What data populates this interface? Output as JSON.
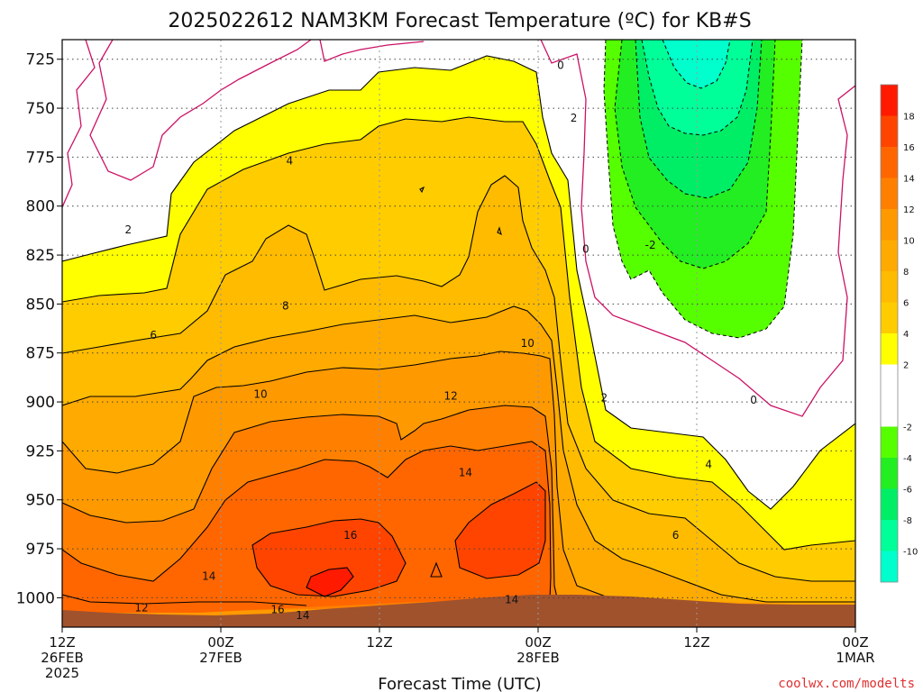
{
  "chart_data": {
    "type": "heatmap",
    "title": "2025022612 NAM3KM Forecast Temperature (ºC) for KB#S",
    "xlabel": "Forecast Time (UTC)",
    "ylabel": "",
    "y_ticks": [
      725,
      750,
      775,
      800,
      825,
      850,
      875,
      900,
      925,
      950,
      975,
      1000
    ],
    "ylim": [
      1015,
      715
    ],
    "x_ticks": [
      {
        "line1": "12Z",
        "line2": "26FEB",
        "line3": "2025"
      },
      {
        "line1": "00Z",
        "line2": "27FEB",
        "line3": ""
      },
      {
        "line1": "12Z",
        "line2": "",
        "line3": ""
      },
      {
        "line1": "00Z",
        "line2": "28FEB",
        "line3": ""
      },
      {
        "line1": "12Z",
        "line2": "",
        "line3": ""
      },
      {
        "line1": "00Z",
        "line2": "1MAR",
        "line3": ""
      }
    ],
    "x_hours": [
      0,
      12,
      24,
      36,
      48,
      60
    ],
    "colorbar": {
      "ticks": [
        18,
        16,
        14,
        12,
        10,
        8,
        6,
        4,
        2,
        -2,
        -4,
        -6,
        -8,
        -10
      ],
      "bins": [
        {
          "lo": 18,
          "hi": 20,
          "color": "#ff1a00"
        },
        {
          "lo": 16,
          "hi": 18,
          "color": "#ff4400"
        },
        {
          "lo": 14,
          "hi": 16,
          "color": "#ff6600"
        },
        {
          "lo": 12,
          "hi": 14,
          "color": "#ff8000"
        },
        {
          "lo": 10,
          "hi": 12,
          "color": "#ff9900"
        },
        {
          "lo": 8,
          "hi": 10,
          "color": "#ffaa00"
        },
        {
          "lo": 6,
          "hi": 8,
          "color": "#ffbb00"
        },
        {
          "lo": 4,
          "hi": 6,
          "color": "#ffcc00"
        },
        {
          "lo": 2,
          "hi": 4,
          "color": "#ffff00"
        },
        {
          "lo": -2,
          "hi": 2,
          "color": "#ffffff"
        },
        {
          "lo": -4,
          "hi": -2,
          "color": "#55ff00"
        },
        {
          "lo": -6,
          "hi": -4,
          "color": "#22ee22"
        },
        {
          "lo": -8,
          "hi": -6,
          "color": "#00ee66"
        },
        {
          "lo": -10,
          "hi": -8,
          "color": "#00ff99"
        },
        {
          "lo": -12,
          "hi": -10,
          "color": "#00ffcc"
        }
      ]
    },
    "contour_labels": [
      {
        "hour": 5.0,
        "p": 812,
        "text": "2"
      },
      {
        "hour": 17.2,
        "p": 777,
        "text": "4"
      },
      {
        "hour": 6.9,
        "p": 866,
        "text": "6"
      },
      {
        "hour": 16.9,
        "p": 851,
        "text": "8"
      },
      {
        "hour": 15.0,
        "p": 896,
        "text": "10"
      },
      {
        "hour": 29.4,
        "p": 897,
        "text": "12"
      },
      {
        "hour": 30.5,
        "p": 936,
        "text": "14"
      },
      {
        "hour": 21.8,
        "p": 968,
        "text": "16"
      },
      {
        "hour": 11.1,
        "p": 989,
        "text": "14"
      },
      {
        "hour": 6.0,
        "p": 1005,
        "text": "12"
      },
      {
        "hour": 16.3,
        "p": 1006,
        "text": "16"
      },
      {
        "hour": 18.2,
        "p": 1009,
        "text": "14"
      },
      {
        "hour": 34.0,
        "p": 1001,
        "text": "14"
      },
      {
        "hour": 35.2,
        "p": 870,
        "text": "10"
      },
      {
        "hour": 37.7,
        "p": 728,
        "text": "0"
      },
      {
        "hour": 38.7,
        "p": 755,
        "text": "2"
      },
      {
        "hour": 39.6,
        "p": 822,
        "text": "0"
      },
      {
        "hour": 44.5,
        "p": 820,
        "text": "-2"
      },
      {
        "hour": 41.0,
        "p": 898,
        "text": "2"
      },
      {
        "hour": 48.9,
        "p": 932,
        "text": "4"
      },
      {
        "hour": 46.4,
        "p": 968,
        "text": "6"
      },
      {
        "hour": 52.3,
        "p": 899,
        "text": "0"
      }
    ],
    "grid": true,
    "legend": "colorbar right"
  },
  "credit": "coolwx.com/modelts",
  "colors": {
    "ground": "#a0522d",
    "freezing_line": "#cc1166",
    "contour": "#000000",
    "credit": "#e03030"
  }
}
